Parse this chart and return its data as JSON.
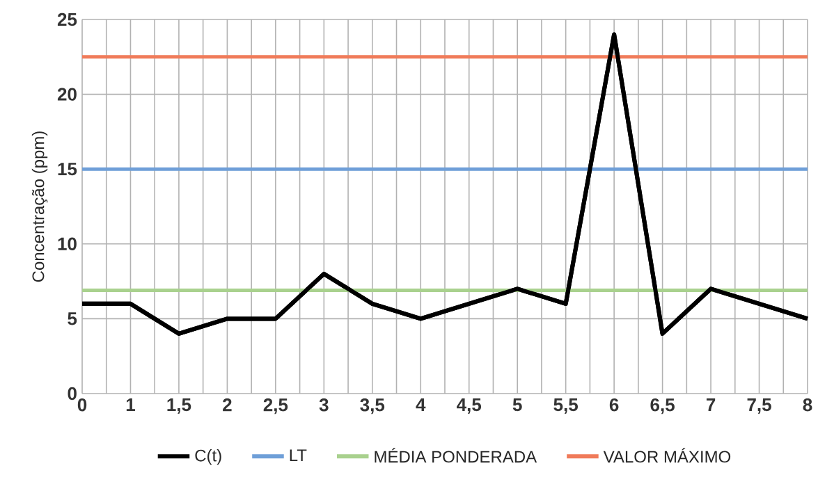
{
  "chart_data": {
    "type": "line",
    "ylabel": "Concentração (ppm)",
    "categories": [
      "0",
      "1",
      "1,5",
      "2",
      "2,5",
      "3",
      "3,5",
      "4",
      "4,5",
      "5",
      "5,5",
      "6",
      "6,5",
      "7",
      "7,5",
      "8"
    ],
    "series": [
      {
        "name": "C(t)",
        "color": "#000000",
        "values": [
          6,
          6,
          4,
          5,
          5,
          8,
          6,
          5,
          6,
          7,
          6,
          24,
          4,
          7,
          6,
          5
        ]
      },
      {
        "name": "LT",
        "color": "#6f9fd8",
        "values": [
          15,
          15,
          15,
          15,
          15,
          15,
          15,
          15,
          15,
          15,
          15,
          15,
          15,
          15,
          15,
          15
        ]
      },
      {
        "name": "MÉDIA PONDERADA",
        "color": "#a9d18e",
        "values": [
          6.9,
          6.9,
          6.9,
          6.9,
          6.9,
          6.9,
          6.9,
          6.9,
          6.9,
          6.9,
          6.9,
          6.9,
          6.9,
          6.9,
          6.9,
          6.9
        ]
      },
      {
        "name": "VALOR MÁXIMO",
        "color": "#f07b5a",
        "values": [
          22.5,
          22.5,
          22.5,
          22.5,
          22.5,
          22.5,
          22.5,
          22.5,
          22.5,
          22.5,
          22.5,
          22.5,
          22.5,
          22.5,
          22.5,
          22.5
        ]
      }
    ],
    "ylim": [
      0,
      25
    ],
    "yticks": [
      0,
      5,
      10,
      15,
      20,
      25
    ],
    "grid": true,
    "legend": "bottom",
    "marker": "none",
    "line_style": "solid"
  }
}
